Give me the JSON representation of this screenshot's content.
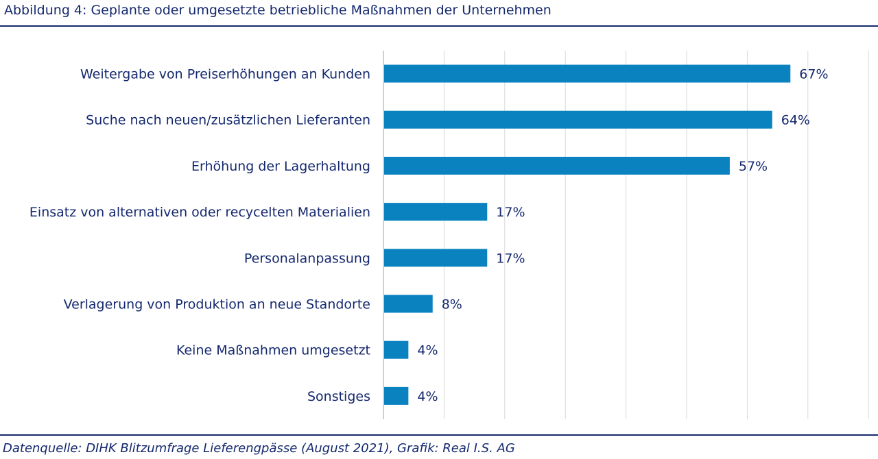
{
  "title": "Abbildung 4: Geplante oder umgesetzte betriebliche Maßnahmen der Unternehmen",
  "source": "Datenquelle: DIHK Blitzumfrage Lieferengpässe (August 2021), Grafik: Real I.S. AG",
  "colors": {
    "bar": "#0a82c0",
    "text": "#14286e",
    "grid": "#d9d9d9",
    "axis": "#b8c0d8"
  },
  "chart_data": {
    "type": "bar",
    "orientation": "horizontal",
    "categories": [
      "Weitergabe von Preiserhöhungen an Kunden",
      "Suche nach neuen/zusätzlichen Lieferanten",
      "Erhöhung der Lagerhaltung",
      "Einsatz von alternativen oder recycelten Materialien",
      "Personalanpassung",
      "Verlagerung von Produktion an neue Standorte",
      "Keine Maßnahmen umgesetzt",
      "Sonstiges"
    ],
    "values": [
      67,
      64,
      57,
      17,
      17,
      8,
      4,
      4
    ],
    "value_labels": [
      "67%",
      "64%",
      "57%",
      "17%",
      "17%",
      "8%",
      "4%",
      "4%"
    ],
    "xlim": [
      0,
      80
    ],
    "grid": true,
    "legend": "none"
  }
}
